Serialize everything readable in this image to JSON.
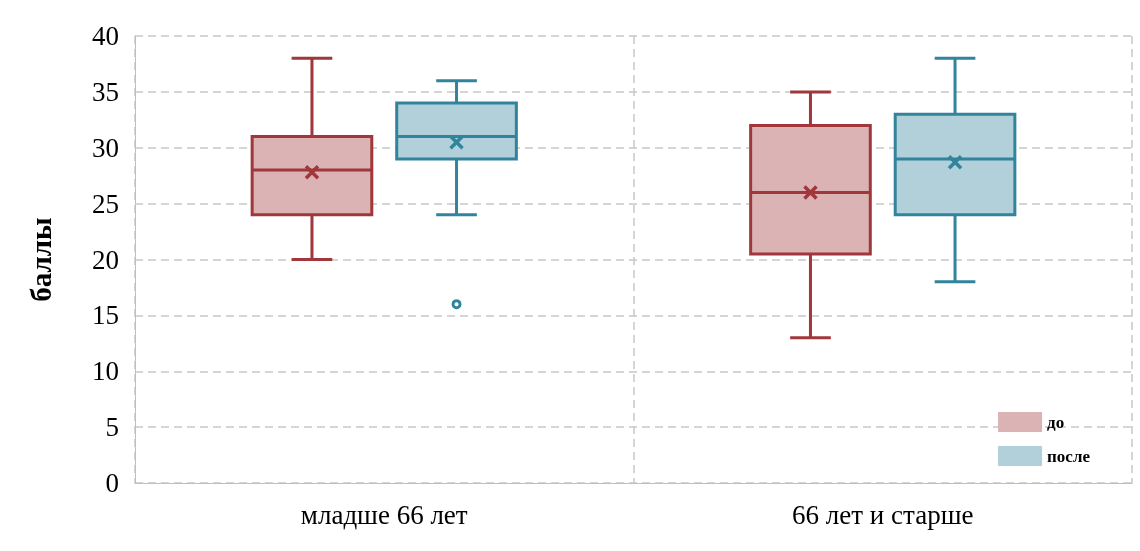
{
  "chart_data": {
    "type": "box",
    "ylabel": "баллы",
    "categories": [
      "младше 66 лет",
      "66 лет и старше"
    ],
    "series": [
      {
        "name": "до",
        "color": "#a0373a",
        "boxes": [
          {
            "low": 20,
            "q1": 24,
            "median": 28,
            "q3": 31,
            "high": 38,
            "mean": 27.8
          },
          {
            "low": 13,
            "q1": 20.5,
            "median": 26,
            "q3": 32,
            "high": 35,
            "mean": 26
          }
        ]
      },
      {
        "name": "после",
        "color": "#31849b",
        "boxes": [
          {
            "low": 24,
            "q1": 29,
            "median": 31,
            "q3": 34,
            "high": 36,
            "mean": 30.5,
            "outliers": [
              16
            ]
          },
          {
            "low": 18,
            "q1": 24,
            "median": 29,
            "q3": 33,
            "high": 38,
            "mean": 28.7
          }
        ]
      }
    ],
    "ylim": [
      0,
      40
    ],
    "yticks": [
      0,
      5,
      10,
      15,
      20,
      25,
      30,
      35,
      40
    ],
    "grid": true,
    "legend": "bottom right"
  }
}
